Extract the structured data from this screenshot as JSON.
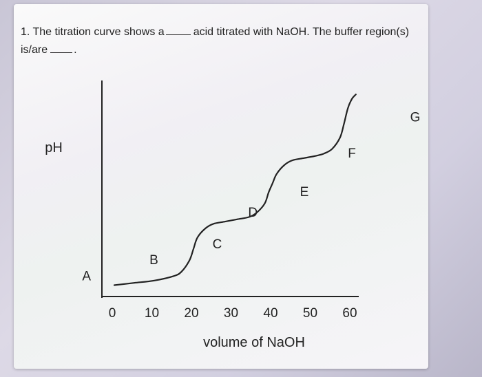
{
  "question": {
    "part1": "1. The titration curve shows a",
    "part2": "acid titrated with NaOH. The buffer region(s)",
    "part3": "is/are",
    "part4": "."
  },
  "chart_data": {
    "type": "line",
    "ylabel": "pH",
    "xlabel": "volume of NaOH",
    "x_ticks": [
      "0",
      "10",
      "20",
      "30",
      "40",
      "50",
      "60"
    ],
    "xlim": [
      0,
      60
    ],
    "grid": false,
    "y_ticks_shown": false,
    "curve": {
      "x": [
        0,
        5,
        10,
        15,
        17,
        19,
        20,
        21,
        23,
        25,
        28,
        31,
        34,
        36,
        38,
        39,
        40,
        41,
        43,
        45,
        48,
        51,
        53,
        55,
        57,
        58,
        59,
        60,
        61
      ],
      "y": [
        0.5,
        0.6,
        0.7,
        0.9,
        1.1,
        1.6,
        2.1,
        2.6,
        3.0,
        3.2,
        3.3,
        3.4,
        3.5,
        3.7,
        4.1,
        4.6,
        5.0,
        5.4,
        5.8,
        6.0,
        6.1,
        6.2,
        6.3,
        6.5,
        7.0,
        7.6,
        8.3,
        8.7,
        8.9
      ]
    },
    "annotations": [
      {
        "text": "A",
        "x": -3.5,
        "y": 0.9
      },
      {
        "text": "B",
        "x": 5,
        "y": 1.6
      },
      {
        "text": "C",
        "x": 13,
        "y": 2.3
      },
      {
        "text": "D",
        "x": 17.5,
        "y": 3.7
      },
      {
        "text": "E",
        "x": 24,
        "y": 4.6
      },
      {
        "text": "F",
        "x": 30,
        "y": 6.3
      },
      {
        "text": "G",
        "x": 38,
        "y": 7.9
      }
    ]
  }
}
